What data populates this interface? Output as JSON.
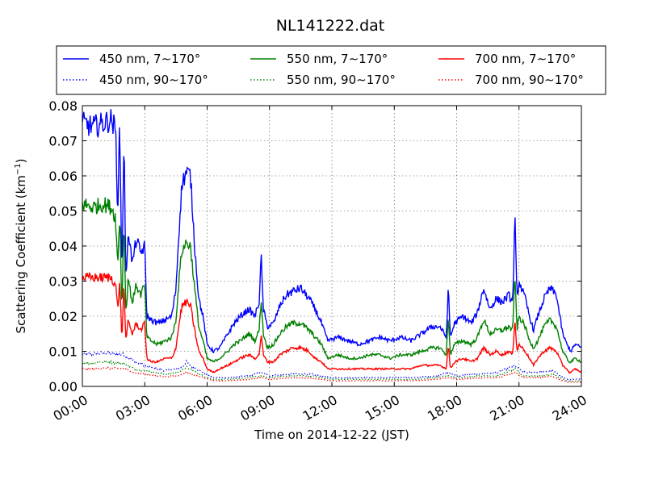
{
  "chart_data": {
    "type": "line",
    "title": "NL141222.dat",
    "xlabel": "Time on 2014-12-22 (JST)",
    "ylabel_main": "Scattering Coefficient (km",
    "ylabel_sup": "−1",
    "ylabel_end": ")",
    "xlim": [
      0,
      24
    ],
    "ylim": [
      0,
      0.08
    ],
    "grid": true,
    "legend_position": "top",
    "x_ticks": [
      {
        "value": 0,
        "label": "00:00"
      },
      {
        "value": 3,
        "label": "03:00"
      },
      {
        "value": 6,
        "label": "06:00"
      },
      {
        "value": 9,
        "label": "09:00"
      },
      {
        "value": 12,
        "label": "12:00"
      },
      {
        "value": 15,
        "label": "15:00"
      },
      {
        "value": 18,
        "label": "18:00"
      },
      {
        "value": 21,
        "label": "21:00"
      },
      {
        "value": 24,
        "label": "24:00"
      }
    ],
    "y_ticks": [
      {
        "value": 0,
        "label": "0.00"
      },
      {
        "value": 0.01,
        "label": "0.01"
      },
      {
        "value": 0.02,
        "label": "0.02"
      },
      {
        "value": 0.03,
        "label": "0.03"
      },
      {
        "value": 0.04,
        "label": "0.04"
      },
      {
        "value": 0.05,
        "label": "0.05"
      },
      {
        "value": 0.06,
        "label": "0.06"
      },
      {
        "value": 0.07,
        "label": "0.07"
      },
      {
        "value": 0.08,
        "label": "0.08"
      }
    ],
    "series": [
      {
        "name": "450 nm, 7∼170°",
        "color": "#0000ff",
        "style": "solid",
        "x": [
          0,
          0.5,
          1,
          1.4,
          1.6,
          1.7,
          1.8,
          1.9,
          2.0,
          2.1,
          2.2,
          2.4,
          2.6,
          2.8,
          3.0,
          3.1,
          3.3,
          3.6,
          4.0,
          4.3,
          4.5,
          4.7,
          4.8,
          5.0,
          5.2,
          5.4,
          5.6,
          5.8,
          6.0,
          6.3,
          6.6,
          7.0,
          7.3,
          7.6,
          8.0,
          8.3,
          8.5,
          8.6,
          8.7,
          8.9,
          9.2,
          9.5,
          9.8,
          10.1,
          10.5,
          10.9,
          11.2,
          11.5,
          11.8,
          12.3,
          12.8,
          13.3,
          13.8,
          14.3,
          14.8,
          15.3,
          15.8,
          16.3,
          16.8,
          17.2,
          17.5,
          17.6,
          17.7,
          17.9,
          18.3,
          18.7,
          19.0,
          19.3,
          19.6,
          19.9,
          20.2,
          20.5,
          20.7,
          20.8,
          20.9,
          21.0,
          21.3,
          21.5,
          21.7,
          21.9,
          22.2,
          22.5,
          22.8,
          23.1,
          23.3,
          23.4,
          23.5,
          23.7,
          24
        ],
        "y": [
          0.075,
          0.074,
          0.075,
          0.076,
          0.073,
          0.05,
          0.075,
          0.03,
          0.072,
          0.028,
          0.045,
          0.035,
          0.042,
          0.038,
          0.04,
          0.02,
          0.019,
          0.018,
          0.019,
          0.02,
          0.028,
          0.05,
          0.058,
          0.061,
          0.06,
          0.04,
          0.025,
          0.02,
          0.012,
          0.01,
          0.011,
          0.015,
          0.018,
          0.02,
          0.022,
          0.02,
          0.024,
          0.037,
          0.022,
          0.017,
          0.018,
          0.023,
          0.026,
          0.027,
          0.028,
          0.025,
          0.022,
          0.018,
          0.013,
          0.014,
          0.013,
          0.012,
          0.013,
          0.014,
          0.013,
          0.014,
          0.013,
          0.015,
          0.017,
          0.017,
          0.014,
          0.028,
          0.014,
          0.018,
          0.02,
          0.018,
          0.021,
          0.028,
          0.022,
          0.025,
          0.024,
          0.026,
          0.024,
          0.049,
          0.025,
          0.03,
          0.025,
          0.02,
          0.016,
          0.02,
          0.025,
          0.028,
          0.026,
          0.015,
          0.012,
          0.011,
          0.01,
          0.012,
          0.011
        ]
      },
      {
        "name": "550 nm, 7∼170°",
        "color": "#008000",
        "style": "solid",
        "x": [
          0,
          0.5,
          1,
          1.4,
          1.6,
          1.7,
          1.8,
          1.9,
          2.0,
          2.1,
          2.2,
          2.4,
          2.6,
          2.8,
          3.0,
          3.1,
          3.3,
          3.6,
          4.0,
          4.3,
          4.5,
          4.7,
          4.8,
          5.0,
          5.2,
          5.4,
          5.6,
          5.8,
          6.0,
          6.3,
          6.6,
          7.0,
          7.3,
          7.6,
          8.0,
          8.3,
          8.5,
          8.6,
          8.7,
          8.9,
          9.2,
          9.5,
          9.8,
          10.1,
          10.5,
          10.9,
          11.2,
          11.5,
          11.8,
          12.3,
          12.8,
          13.3,
          13.8,
          14.3,
          14.8,
          15.3,
          15.8,
          16.3,
          16.8,
          17.2,
          17.5,
          17.6,
          17.7,
          17.9,
          18.3,
          18.7,
          19.0,
          19.3,
          19.6,
          19.9,
          20.2,
          20.5,
          20.7,
          20.8,
          20.9,
          21.0,
          21.3,
          21.5,
          21.7,
          21.9,
          22.2,
          22.5,
          22.8,
          23.1,
          23.3,
          23.4,
          23.5,
          23.7,
          24
        ],
        "y": [
          0.052,
          0.051,
          0.052,
          0.051,
          0.048,
          0.034,
          0.05,
          0.021,
          0.048,
          0.02,
          0.031,
          0.024,
          0.029,
          0.026,
          0.029,
          0.014,
          0.013,
          0.012,
          0.013,
          0.014,
          0.019,
          0.034,
          0.039,
          0.041,
          0.04,
          0.028,
          0.017,
          0.013,
          0.008,
          0.007,
          0.008,
          0.01,
          0.012,
          0.013,
          0.015,
          0.013,
          0.016,
          0.025,
          0.015,
          0.011,
          0.012,
          0.015,
          0.017,
          0.018,
          0.018,
          0.016,
          0.014,
          0.012,
          0.008,
          0.009,
          0.008,
          0.008,
          0.009,
          0.009,
          0.008,
          0.009,
          0.009,
          0.01,
          0.011,
          0.011,
          0.009,
          0.02,
          0.009,
          0.012,
          0.013,
          0.012,
          0.014,
          0.019,
          0.015,
          0.016,
          0.016,
          0.017,
          0.016,
          0.033,
          0.016,
          0.02,
          0.017,
          0.013,
          0.011,
          0.013,
          0.017,
          0.019,
          0.017,
          0.01,
          0.008,
          0.007,
          0.007,
          0.008,
          0.007
        ]
      },
      {
        "name": "700 nm, 7∼170°",
        "color": "#ff0000",
        "style": "solid",
        "x": [
          0,
          0.5,
          1,
          1.4,
          1.6,
          1.7,
          1.8,
          1.9,
          2.0,
          2.1,
          2.2,
          2.4,
          2.6,
          2.8,
          3.0,
          3.1,
          3.3,
          3.6,
          4.0,
          4.3,
          4.5,
          4.7,
          4.8,
          5.0,
          5.2,
          5.4,
          5.6,
          5.8,
          6.0,
          6.3,
          6.6,
          7.0,
          7.3,
          7.6,
          8.0,
          8.3,
          8.5,
          8.6,
          8.7,
          8.9,
          9.2,
          9.5,
          9.8,
          10.1,
          10.5,
          10.9,
          11.2,
          11.5,
          11.8,
          12.3,
          12.8,
          13.3,
          13.8,
          14.3,
          14.8,
          15.3,
          15.8,
          16.3,
          16.8,
          17.2,
          17.5,
          17.6,
          17.7,
          17.9,
          18.3,
          18.7,
          19.0,
          19.3,
          19.6,
          19.9,
          20.2,
          20.5,
          20.7,
          20.8,
          20.9,
          21.0,
          21.3,
          21.5,
          21.7,
          21.9,
          22.2,
          22.5,
          22.8,
          23.1,
          23.3,
          23.4,
          23.5,
          23.7,
          24
        ],
        "y": [
          0.031,
          0.031,
          0.031,
          0.031,
          0.029,
          0.022,
          0.03,
          0.013,
          0.029,
          0.012,
          0.019,
          0.015,
          0.018,
          0.016,
          0.018,
          0.008,
          0.007,
          0.007,
          0.008,
          0.008,
          0.011,
          0.02,
          0.023,
          0.024,
          0.023,
          0.016,
          0.01,
          0.008,
          0.005,
          0.004,
          0.005,
          0.006,
          0.007,
          0.008,
          0.009,
          0.008,
          0.009,
          0.015,
          0.009,
          0.007,
          0.007,
          0.009,
          0.01,
          0.011,
          0.011,
          0.01,
          0.008,
          0.007,
          0.005,
          0.005,
          0.005,
          0.005,
          0.005,
          0.005,
          0.005,
          0.005,
          0.005,
          0.006,
          0.006,
          0.006,
          0.005,
          0.012,
          0.005,
          0.007,
          0.008,
          0.007,
          0.008,
          0.011,
          0.009,
          0.01,
          0.009,
          0.01,
          0.009,
          0.02,
          0.01,
          0.012,
          0.01,
          0.008,
          0.006,
          0.008,
          0.01,
          0.011,
          0.01,
          0.006,
          0.005,
          0.004,
          0.004,
          0.005,
          0.004
        ]
      },
      {
        "name": "450 nm, 90∼170°",
        "color": "#0000ff",
        "style": "dotted",
        "x": [
          0,
          1,
          2,
          2.5,
          3,
          3.5,
          4,
          4.5,
          4.8,
          5.0,
          5.3,
          5.8,
          6.3,
          7,
          8,
          8.6,
          9,
          10,
          11,
          12,
          13,
          14,
          15,
          16,
          17,
          17.6,
          18,
          19,
          20,
          20.8,
          21.2,
          22,
          22.6,
          23.3,
          24
        ],
        "y": [
          0.009,
          0.0095,
          0.009,
          0.007,
          0.006,
          0.005,
          0.0045,
          0.005,
          0.0055,
          0.007,
          0.0055,
          0.004,
          0.0025,
          0.0025,
          0.003,
          0.004,
          0.003,
          0.0035,
          0.0035,
          0.0025,
          0.0025,
          0.0025,
          0.0025,
          0.0025,
          0.003,
          0.004,
          0.003,
          0.0035,
          0.004,
          0.006,
          0.004,
          0.004,
          0.0045,
          0.002,
          0.002
        ]
      },
      {
        "name": "550 nm, 90∼170°",
        "color": "#008000",
        "style": "dotted",
        "x": [
          0,
          1,
          2,
          2.5,
          3,
          3.5,
          4,
          4.5,
          4.8,
          5.0,
          5.3,
          5.8,
          6.3,
          7,
          8,
          8.6,
          9,
          10,
          11,
          12,
          13,
          14,
          15,
          16,
          17,
          17.6,
          18,
          19,
          20,
          20.8,
          21.2,
          22,
          22.6,
          23.3,
          24
        ],
        "y": [
          0.0065,
          0.007,
          0.0065,
          0.005,
          0.0045,
          0.004,
          0.0035,
          0.004,
          0.0045,
          0.0055,
          0.0045,
          0.003,
          0.002,
          0.002,
          0.0025,
          0.003,
          0.0025,
          0.003,
          0.003,
          0.002,
          0.002,
          0.002,
          0.002,
          0.002,
          0.0025,
          0.003,
          0.0025,
          0.003,
          0.003,
          0.005,
          0.003,
          0.003,
          0.0035,
          0.0015,
          0.0015
        ]
      },
      {
        "name": "700 nm, 90∼170°",
        "color": "#ff0000",
        "style": "dotted",
        "x": [
          0,
          1,
          2,
          2.5,
          3,
          3.5,
          4,
          4.5,
          4.8,
          5.0,
          5.3,
          5.8,
          6.3,
          7,
          8,
          8.6,
          9,
          10,
          11,
          12,
          13,
          14,
          15,
          16,
          17,
          17.6,
          18,
          19,
          20,
          20.8,
          21.2,
          22,
          22.6,
          23.3,
          24
        ],
        "y": [
          0.005,
          0.0052,
          0.005,
          0.004,
          0.0035,
          0.003,
          0.0028,
          0.003,
          0.0035,
          0.0042,
          0.0035,
          0.0025,
          0.0016,
          0.0016,
          0.002,
          0.0025,
          0.002,
          0.0024,
          0.0024,
          0.0016,
          0.0016,
          0.0016,
          0.0016,
          0.0016,
          0.002,
          0.0025,
          0.002,
          0.0024,
          0.0025,
          0.004,
          0.0025,
          0.0025,
          0.0028,
          0.0012,
          0.0012
        ]
      }
    ]
  }
}
